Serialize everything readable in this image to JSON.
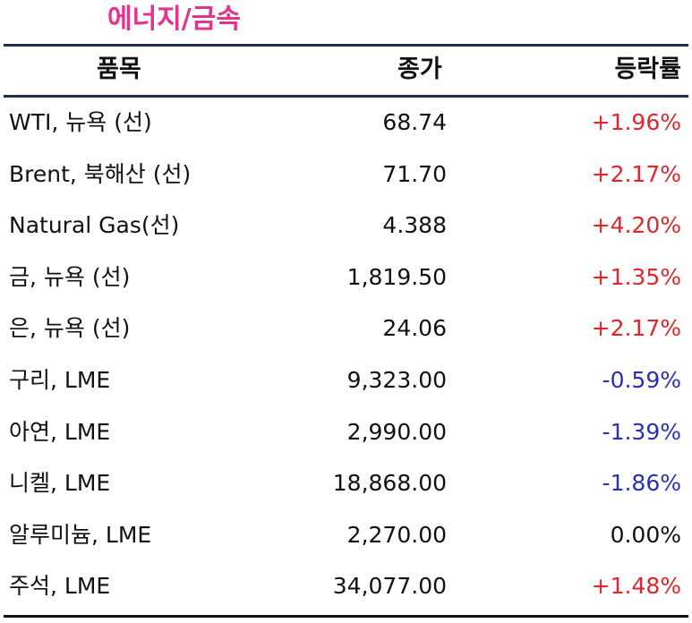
{
  "title": "에너지/금속",
  "headers": {
    "item": "품목",
    "price": "종가",
    "change": "등락률"
  },
  "rows": [
    {
      "item": "WTI, 뉴욕 (선)",
      "price": "68.74",
      "change": "+1.96%",
      "direction": "up"
    },
    {
      "item": "Brent, 북해산 (선)",
      "price": "71.70",
      "change": "+2.17%",
      "direction": "up"
    },
    {
      "item": "Natural Gas(선)",
      "price": "4.388",
      "change": "+4.20%",
      "direction": "up"
    },
    {
      "item": "금, 뉴욕  (선)",
      "price": "1,819.50",
      "change": "+1.35%",
      "direction": "up"
    },
    {
      "item": "은, 뉴욕  (선)",
      "price": "24.06",
      "change": "+2.17%",
      "direction": "up"
    },
    {
      "item": "구리, LME",
      "price": "9,323.00",
      "change": "-0.59%",
      "direction": "down"
    },
    {
      "item": "아연, LME",
      "price": "2,990.00",
      "change": "-1.39%",
      "direction": "down"
    },
    {
      "item": "니켈, LME",
      "price": "18,868.00",
      "change": "-1.86%",
      "direction": "down"
    },
    {
      "item": "알루미늄, LME",
      "price": "2,270.00",
      "change": "0.00%",
      "direction": "flat"
    },
    {
      "item": "주석, LME",
      "price": "34,077.00",
      "change": "+1.48%",
      "direction": "up"
    }
  ],
  "colors": {
    "title": "#e0358c",
    "up": "#e0262b",
    "down": "#2b2fb8",
    "rule": "#1f2d4f"
  }
}
